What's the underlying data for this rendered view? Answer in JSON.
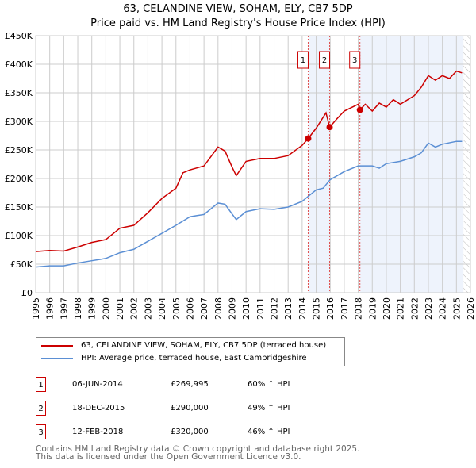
{
  "chart_data": {
    "type": "line",
    "title": "63, CELANDINE VIEW, SOHAM, ELY, CB7 5DP",
    "subtitle": "Price paid vs. HM Land Registry's House Price Index (HPI)",
    "xlim": [
      1995,
      2026
    ],
    "ylim": [
      0,
      450000
    ],
    "yticks": [
      {
        "v": 0,
        "l": "£0"
      },
      {
        "v": 50000,
        "l": "£50K"
      },
      {
        "v": 100000,
        "l": "£100K"
      },
      {
        "v": 150000,
        "l": "£150K"
      },
      {
        "v": 200000,
        "l": "£200K"
      },
      {
        "v": 250000,
        "l": "£250K"
      },
      {
        "v": 300000,
        "l": "£300K"
      },
      {
        "v": 350000,
        "l": "£350K"
      },
      {
        "v": 400000,
        "l": "£400K"
      },
      {
        "v": 450000,
        "l": "£450K"
      }
    ],
    "xticks": [
      "1995",
      "1996",
      "1997",
      "1998",
      "1999",
      "2000",
      "2001",
      "2002",
      "2003",
      "2004",
      "2005",
      "2006",
      "2007",
      "2008",
      "2009",
      "2010",
      "2011",
      "2012",
      "2013",
      "2014",
      "2015",
      "2016",
      "2017",
      "2018",
      "2019",
      "2020",
      "2021",
      "2022",
      "2023",
      "2024",
      "2025",
      "2026"
    ],
    "grid": true,
    "shaded_ranges": [
      [
        2014.43,
        2015.96
      ],
      [
        2018.12,
        2025.5
      ]
    ],
    "future_hatch_from": 2025.5,
    "series": [
      {
        "name": "63, CELANDINE VIEW, SOHAM, ELY, CB7 5DP (terraced house)",
        "color": "#cc0000",
        "x": [
          1995,
          1996,
          1997,
          1998,
          1999,
          2000,
          2001,
          2002,
          2003,
          2004,
          2005,
          2005.5,
          2006,
          2007,
          2008,
          2008.5,
          2009,
          2009.3,
          2010,
          2011,
          2012,
          2013,
          2014,
          2014.43,
          2015,
          2015.7,
          2015.96,
          2016.5,
          2017,
          2018,
          2018.12,
          2018.5,
          2019,
          2019.5,
          2020,
          2020.5,
          2021,
          2022,
          2022.5,
          2023,
          2023.5,
          2024,
          2024.5,
          2025,
          2025.4
        ],
        "y": [
          72000,
          74000,
          73000,
          80000,
          88000,
          93000,
          113000,
          118000,
          140000,
          165000,
          183000,
          210000,
          215000,
          222000,
          255000,
          248000,
          220000,
          205000,
          230000,
          235000,
          235000,
          240000,
          258000,
          269995,
          288000,
          315000,
          290000,
          305000,
          318000,
          330000,
          320000,
          330000,
          318000,
          332000,
          325000,
          338000,
          330000,
          345000,
          360000,
          380000,
          372000,
          380000,
          375000,
          388000,
          385000
        ]
      },
      {
        "name": "HPI: Average price, terraced house, East Cambridgeshire",
        "color": "#5b8fd4",
        "x": [
          1995,
          1996,
          1997,
          1998,
          1999,
          2000,
          2001,
          2002,
          2003,
          2004,
          2005,
          2006,
          2006.5,
          2007,
          2008,
          2008.5,
          2009,
          2009.3,
          2010,
          2011,
          2012,
          2013,
          2014,
          2014.5,
          2015,
          2015.5,
          2016,
          2017,
          2018,
          2019,
          2019.5,
          2020,
          2021,
          2022,
          2022.5,
          2023,
          2023.5,
          2024,
          2025,
          2025.4
        ],
        "y": [
          45000,
          47000,
          47000,
          52000,
          56000,
          60000,
          70000,
          76000,
          90000,
          104000,
          118000,
          133000,
          135000,
          137000,
          157000,
          155000,
          138000,
          128000,
          142000,
          147000,
          146000,
          150000,
          160000,
          170000,
          180000,
          183000,
          198000,
          212000,
          222000,
          222000,
          218000,
          226000,
          230000,
          238000,
          245000,
          262000,
          255000,
          260000,
          265000,
          265000
        ]
      }
    ],
    "sales": [
      {
        "n": "1",
        "x": 2014.43,
        "y": 269995,
        "date": "06-JUN-2014",
        "price": "£269,995",
        "hpi": "60% ↑ HPI"
      },
      {
        "n": "2",
        "x": 2015.96,
        "y": 290000,
        "date": "18-DEC-2015",
        "price": "£290,000",
        "hpi": "49% ↑ HPI"
      },
      {
        "n": "3",
        "x": 2018.12,
        "y": 320000,
        "date": "12-FEB-2018",
        "price": "£320,000",
        "hpi": "46% ↑ HPI"
      }
    ]
  },
  "footer": {
    "line1": "Contains HM Land Registry data © Crown copyright and database right 2025.",
    "line2": "This data is licensed under the Open Government Licence v3.0."
  }
}
